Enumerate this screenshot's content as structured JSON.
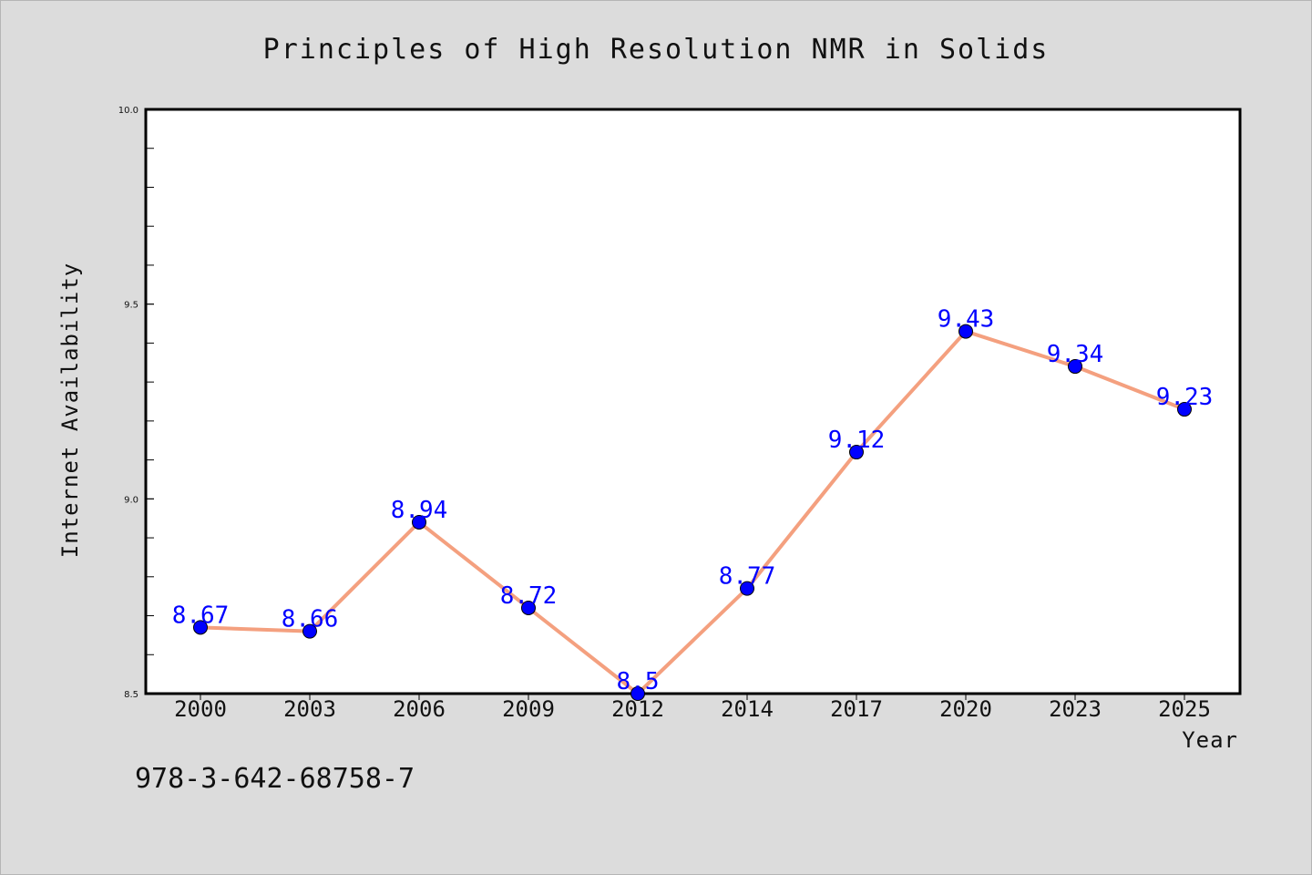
{
  "chart_data": {
    "type": "line",
    "title": "Principles of High Resolution NMR in Solids",
    "xlabel": "Year",
    "ylabel": "Internet Availability",
    "categories": [
      "2000",
      "2003",
      "2006",
      "2009",
      "2012",
      "2014",
      "2017",
      "2020",
      "2023",
      "2025"
    ],
    "series": [
      {
        "values": [
          8.67,
          8.66,
          8.94,
          8.72,
          8.5,
          8.77,
          9.12,
          9.43,
          9.34,
          9.23
        ],
        "labels": [
          "8.67",
          "8.66",
          "8.94",
          "8.72",
          "8.5",
          "8.77",
          "9.12",
          "9.43",
          "9.34",
          "9.23"
        ],
        "line_color": "#f4a07f",
        "marker_color": "#0000ff"
      }
    ],
    "ylim": [
      8.5,
      10.0
    ],
    "yticks": [
      "8.5",
      "9.0",
      "9.5",
      "10.0"
    ],
    "y_minor_step": 0.1,
    "grid": false,
    "legend": "none"
  },
  "footnote": "978-3-642-68758-7",
  "colors": {
    "background": "#dcdcdc",
    "plot_background": "#ffffff",
    "axis": "#000000"
  }
}
